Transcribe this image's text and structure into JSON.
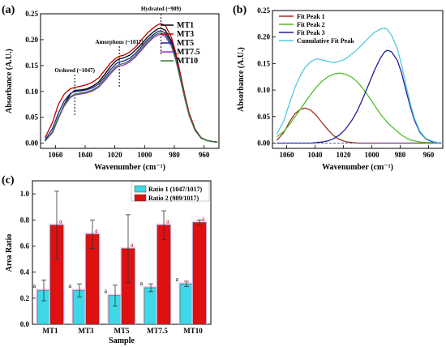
{
  "chart_data": [
    {
      "panel": "(a)",
      "type": "line",
      "xlabel": "Wavenumber (cm⁻¹)",
      "ylabel": "Absorbance (A.U.)",
      "xlim": [
        1070,
        950
      ],
      "ylim": [
        -0.01,
        0.25
      ],
      "x_ticks": [
        1060,
        1040,
        1020,
        1000,
        980,
        960
      ],
      "y_ticks": [
        0.0,
        0.05,
        0.1,
        0.15,
        0.2,
        0.25
      ],
      "legend_position": "top-right",
      "annotations": [
        {
          "label": "Ordered (~1047)",
          "x": 1047
        },
        {
          "label": "Amorphous (~1017)",
          "x": 1017
        },
        {
          "label": "Hydrated (~989)",
          "x": 989
        }
      ],
      "x": [
        1067,
        1062,
        1058,
        1054,
        1050,
        1047,
        1043,
        1039,
        1035,
        1031,
        1027,
        1023,
        1019,
        1017,
        1014,
        1010,
        1006,
        1002,
        998,
        994,
        991,
        989,
        986,
        982,
        979,
        976,
        973,
        970,
        966,
        962,
        958,
        954,
        951
      ],
      "series": [
        {
          "name": "MT1",
          "color": "#000000",
          "values": [
            0.005,
            0.02,
            0.048,
            0.075,
            0.095,
            0.102,
            0.103,
            0.105,
            0.11,
            0.118,
            0.132,
            0.148,
            0.16,
            0.163,
            0.165,
            0.17,
            0.18,
            0.192,
            0.205,
            0.215,
            0.221,
            0.222,
            0.218,
            0.198,
            0.168,
            0.13,
            0.09,
            0.055,
            0.025,
            0.01,
            0.005,
            0.003,
            0.002
          ]
        },
        {
          "name": "MT3",
          "color": "#c00000",
          "values": [
            0.01,
            0.04,
            0.075,
            0.095,
            0.105,
            0.108,
            0.11,
            0.113,
            0.118,
            0.126,
            0.14,
            0.155,
            0.165,
            0.168,
            0.17,
            0.176,
            0.186,
            0.2,
            0.213,
            0.223,
            0.229,
            0.231,
            0.227,
            0.205,
            0.175,
            0.135,
            0.094,
            0.058,
            0.027,
            0.011,
            0.005,
            0.003,
            0.002
          ]
        },
        {
          "name": "MT5",
          "color": "#1f1f9c",
          "values": [
            0.006,
            0.028,
            0.058,
            0.082,
            0.096,
            0.1,
            0.101,
            0.103,
            0.107,
            0.114,
            0.127,
            0.142,
            0.154,
            0.157,
            0.159,
            0.164,
            0.174,
            0.187,
            0.2,
            0.21,
            0.216,
            0.217,
            0.213,
            0.194,
            0.165,
            0.128,
            0.089,
            0.054,
            0.025,
            0.01,
            0.005,
            0.003,
            0.002
          ]
        },
        {
          "name": "MT7.5",
          "color": "#9932cc",
          "values": [
            0.004,
            0.02,
            0.048,
            0.072,
            0.088,
            0.093,
            0.095,
            0.097,
            0.101,
            0.108,
            0.12,
            0.134,
            0.146,
            0.149,
            0.151,
            0.157,
            0.167,
            0.18,
            0.193,
            0.204,
            0.209,
            0.21,
            0.206,
            0.188,
            0.16,
            0.124,
            0.087,
            0.053,
            0.024,
            0.01,
            0.005,
            0.003,
            0.002
          ]
        },
        {
          "name": "MT10",
          "color": "#2e7d32",
          "values": [
            0.004,
            0.022,
            0.05,
            0.074,
            0.09,
            0.095,
            0.097,
            0.099,
            0.103,
            0.11,
            0.123,
            0.137,
            0.149,
            0.152,
            0.154,
            0.16,
            0.17,
            0.183,
            0.196,
            0.207,
            0.212,
            0.213,
            0.209,
            0.19,
            0.162,
            0.126,
            0.088,
            0.054,
            0.025,
            0.01,
            0.005,
            0.003,
            0.002
          ]
        }
      ]
    },
    {
      "panel": "(b)",
      "type": "line",
      "xlabel": "Wavenumber (cm⁻¹)",
      "ylabel": "Absorbance (A.U.)",
      "xlim": [
        1070,
        950
      ],
      "ylim": [
        -0.01,
        0.25
      ],
      "x_ticks": [
        1060,
        1040,
        1020,
        1000,
        980,
        960
      ],
      "y_ticks": [
        0.0,
        0.05,
        0.1,
        0.15,
        0.2,
        0.25
      ],
      "legend_position": "top-left",
      "x": [
        1067,
        1062,
        1058,
        1054,
        1050,
        1047,
        1043,
        1039,
        1035,
        1031,
        1027,
        1023,
        1019,
        1017,
        1014,
        1010,
        1006,
        1002,
        998,
        994,
        991,
        989,
        986,
        982,
        979,
        976,
        973,
        970,
        966,
        962,
        958,
        954,
        951
      ],
      "series": [
        {
          "name": "Fit Peak 1",
          "color": "#a0311c",
          "values": [
            0.005,
            0.02,
            0.04,
            0.056,
            0.064,
            0.066,
            0.062,
            0.052,
            0.038,
            0.025,
            0.014,
            0.007,
            0.003,
            0.002,
            0.001,
            0,
            0,
            0,
            0,
            0,
            0,
            0,
            0,
            0,
            0,
            0,
            0,
            0,
            0,
            0,
            0,
            0,
            0
          ]
        },
        {
          "name": "Fit Peak 2",
          "color": "#4ec02a",
          "values": [
            0.012,
            0.022,
            0.035,
            0.05,
            0.065,
            0.077,
            0.092,
            0.106,
            0.117,
            0.125,
            0.13,
            0.132,
            0.13,
            0.128,
            0.124,
            0.115,
            0.102,
            0.087,
            0.071,
            0.055,
            0.045,
            0.039,
            0.031,
            0.022,
            0.015,
            0.01,
            0.006,
            0.004,
            0.002,
            0.001,
            0.001,
            0,
            0
          ]
        },
        {
          "name": "Fit Peak 3",
          "color": "#1f1f9c",
          "values": [
            0,
            0,
            0,
            0,
            0,
            0,
            0,
            0.001,
            0.002,
            0.004,
            0.008,
            0.015,
            0.025,
            0.032,
            0.043,
            0.062,
            0.086,
            0.112,
            0.138,
            0.16,
            0.172,
            0.175,
            0.172,
            0.156,
            0.132,
            0.1,
            0.07,
            0.043,
            0.02,
            0.008,
            0.003,
            0.001,
            0
          ]
        },
        {
          "name": "Cumulative Fit Peak",
          "color": "#4fc8e8",
          "values": [
            0.017,
            0.042,
            0.075,
            0.106,
            0.129,
            0.143,
            0.154,
            0.159,
            0.157,
            0.154,
            0.152,
            0.154,
            0.158,
            0.162,
            0.168,
            0.177,
            0.188,
            0.199,
            0.209,
            0.215,
            0.217,
            0.214,
            0.203,
            0.178,
            0.147,
            0.11,
            0.076,
            0.047,
            0.022,
            0.009,
            0.004,
            0.001,
            0
          ]
        }
      ]
    },
    {
      "panel": "(c)",
      "type": "bar",
      "xlabel": "Sample",
      "ylabel": "Area Ratio",
      "ylim": [
        0.0,
        1.1
      ],
      "y_ticks": [
        0.0,
        0.2,
        0.4,
        0.6,
        0.8,
        1.0
      ],
      "legend_position": "top-right",
      "categories": [
        "MT1",
        "MT3",
        "MT5",
        "MT7.5",
        "MT10"
      ],
      "series": [
        {
          "name": "Ratio 1 (1047/1017)",
          "color": "#3fd8e6",
          "values": [
            0.26,
            0.26,
            0.22,
            0.28,
            0.31
          ],
          "errors": [
            0.08,
            0.05,
            0.08,
            0.03,
            0.02
          ],
          "significance": [
            "a",
            "a",
            "a",
            "a",
            "a"
          ]
        },
        {
          "name": "Ratio 2 (989/1017)",
          "color": "#e01010",
          "values": [
            0.76,
            0.69,
            0.58,
            0.76,
            0.78
          ],
          "errors": [
            0.26,
            0.11,
            0.26,
            0.11,
            0.02
          ],
          "significance": [
            "a",
            "a",
            "a",
            "a",
            "a"
          ]
        }
      ]
    }
  ]
}
